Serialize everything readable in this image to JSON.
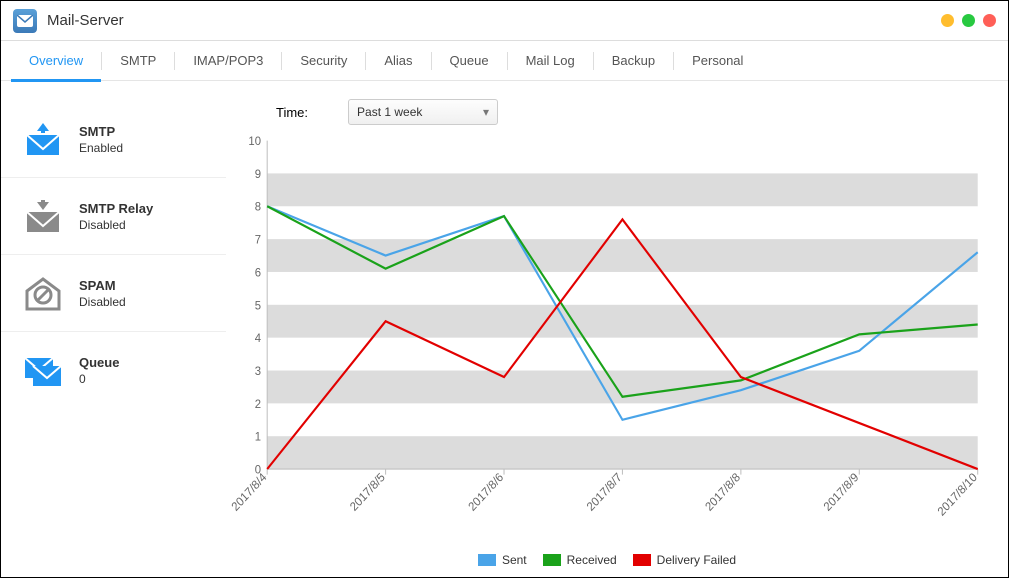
{
  "window": {
    "title": "Mail-Server",
    "controls": {
      "min_color": "#ffbd2e",
      "max_color": "#28c940",
      "close_color": "#ff5f57"
    }
  },
  "tabs": {
    "items": [
      "Overview",
      "SMTP",
      "IMAP/POP3",
      "Security",
      "Alias",
      "Queue",
      "Mail Log",
      "Backup",
      "Personal"
    ],
    "active_index": 0
  },
  "sidebar": {
    "items": [
      {
        "title": "SMTP",
        "sub": "Enabled",
        "icon": "smtp-send",
        "color": "#2196f3"
      },
      {
        "title": "SMTP Relay",
        "sub": "Disabled",
        "icon": "smtp-relay",
        "color": "#8a8a8a"
      },
      {
        "title": "SPAM",
        "sub": "Disabled",
        "icon": "spam",
        "color": "#8a8a8a"
      },
      {
        "title": "Queue",
        "sub": "0",
        "icon": "queue",
        "color": "#2196f3"
      }
    ]
  },
  "time": {
    "label": "Time:",
    "selected": "Past 1 week"
  },
  "chart": {
    "type": "line",
    "x_labels": [
      "2017/8/4",
      "2017/8/5",
      "2017/8/6",
      "2017/8/7",
      "2017/8/8",
      "2017/8/9",
      "2017/8/10"
    ],
    "ylim": [
      0,
      10
    ],
    "ytick_step": 1,
    "line_width": 2,
    "background_color": "#ffffff",
    "band_color": "#dcdcdc",
    "axis_color": "#bfbfbf",
    "grid_color": "#e6e6e6",
    "label_fontsize": 11,
    "x_label_rotation": -45,
    "series": [
      {
        "name": "Sent",
        "color": "#4aa4e8",
        "values": [
          8,
          6.5,
          7.7,
          1.5,
          2.4,
          3.6,
          6.6
        ]
      },
      {
        "name": "Received",
        "color": "#1aa21a",
        "values": [
          8,
          6.1,
          7.7,
          2.2,
          2.7,
          4.1,
          4.4
        ]
      },
      {
        "name": "Delivery Failed",
        "color": "#e20000",
        "values": [
          0,
          4.5,
          2.8,
          7.6,
          2.8,
          1.4,
          0
        ]
      }
    ]
  }
}
